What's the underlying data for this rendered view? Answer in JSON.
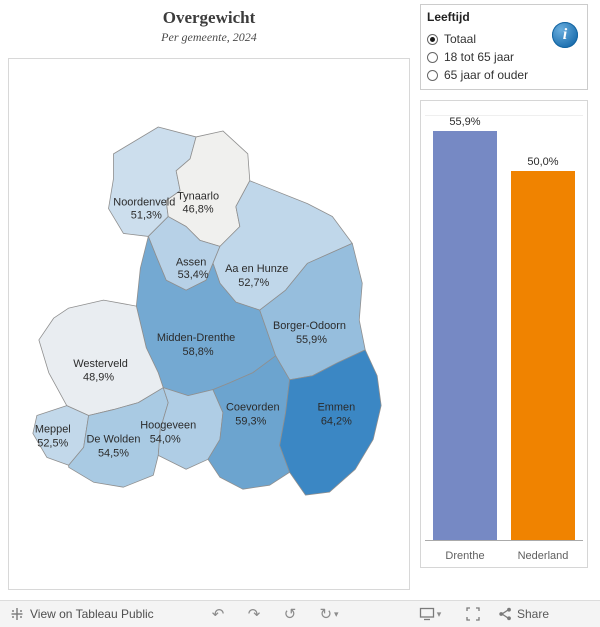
{
  "header": {
    "title": "Overgewicht",
    "subtitle": "Per gemeente, 2024"
  },
  "controls": {
    "title": "Leeftijd",
    "options": [
      {
        "label": "Totaal",
        "selected": true
      },
      {
        "label": "18 tot 65 jaar",
        "selected": false
      },
      {
        "label": "65 jaar of ouder",
        "selected": false
      }
    ]
  },
  "map": {
    "regions": [
      {
        "name": "Noordenveld",
        "value": "51,3%",
        "color": "#ccdeed"
      },
      {
        "name": "Tynaarlo",
        "value": "46,8%",
        "color": "#f0f0ee"
      },
      {
        "name": "Assen",
        "value": "53,4%",
        "color": "#b7d1e7"
      },
      {
        "name": "Aa en Hunze",
        "value": "52,7%",
        "color": "#c0d7ea"
      },
      {
        "name": "Midden-Drenthe",
        "value": "58,8%",
        "color": "#74a9d2"
      },
      {
        "name": "Borger-Odoorn",
        "value": "55,9%",
        "color": "#96bedd"
      },
      {
        "name": "Westerveld",
        "value": "48,9%",
        "color": "#e9edf1"
      },
      {
        "name": "Meppel",
        "value": "52,5%",
        "color": "#c2d8ea"
      },
      {
        "name": "De Wolden",
        "value": "54,5%",
        "color": "#a9cae3"
      },
      {
        "name": "Hoogeveen",
        "value": "54,0%",
        "color": "#afcde5"
      },
      {
        "name": "Coevorden",
        "value": "59,3%",
        "color": "#6ca4cf"
      },
      {
        "name": "Emmen",
        "value": "64,2%",
        "color": "#3b87c4"
      }
    ]
  },
  "chart_data": {
    "type": "bar",
    "categories": [
      "Drenthe",
      "Nederland"
    ],
    "values": [
      55.9,
      50.0
    ],
    "value_labels": [
      "55,9%",
      "50,0%"
    ],
    "colors": [
      "#7689c4",
      "#f08300"
    ],
    "title": "",
    "xlabel": "",
    "ylabel": "",
    "ylim": [
      0,
      58
    ],
    "grid": false,
    "legend": "none"
  },
  "icons": {
    "undo": "↶",
    "redo": "↷",
    "reset": "↺",
    "refresh": "↻",
    "caret": "▾",
    "info": "i"
  },
  "toolbar": {
    "view_label": "View on Tableau Public",
    "share_label": "Share"
  }
}
